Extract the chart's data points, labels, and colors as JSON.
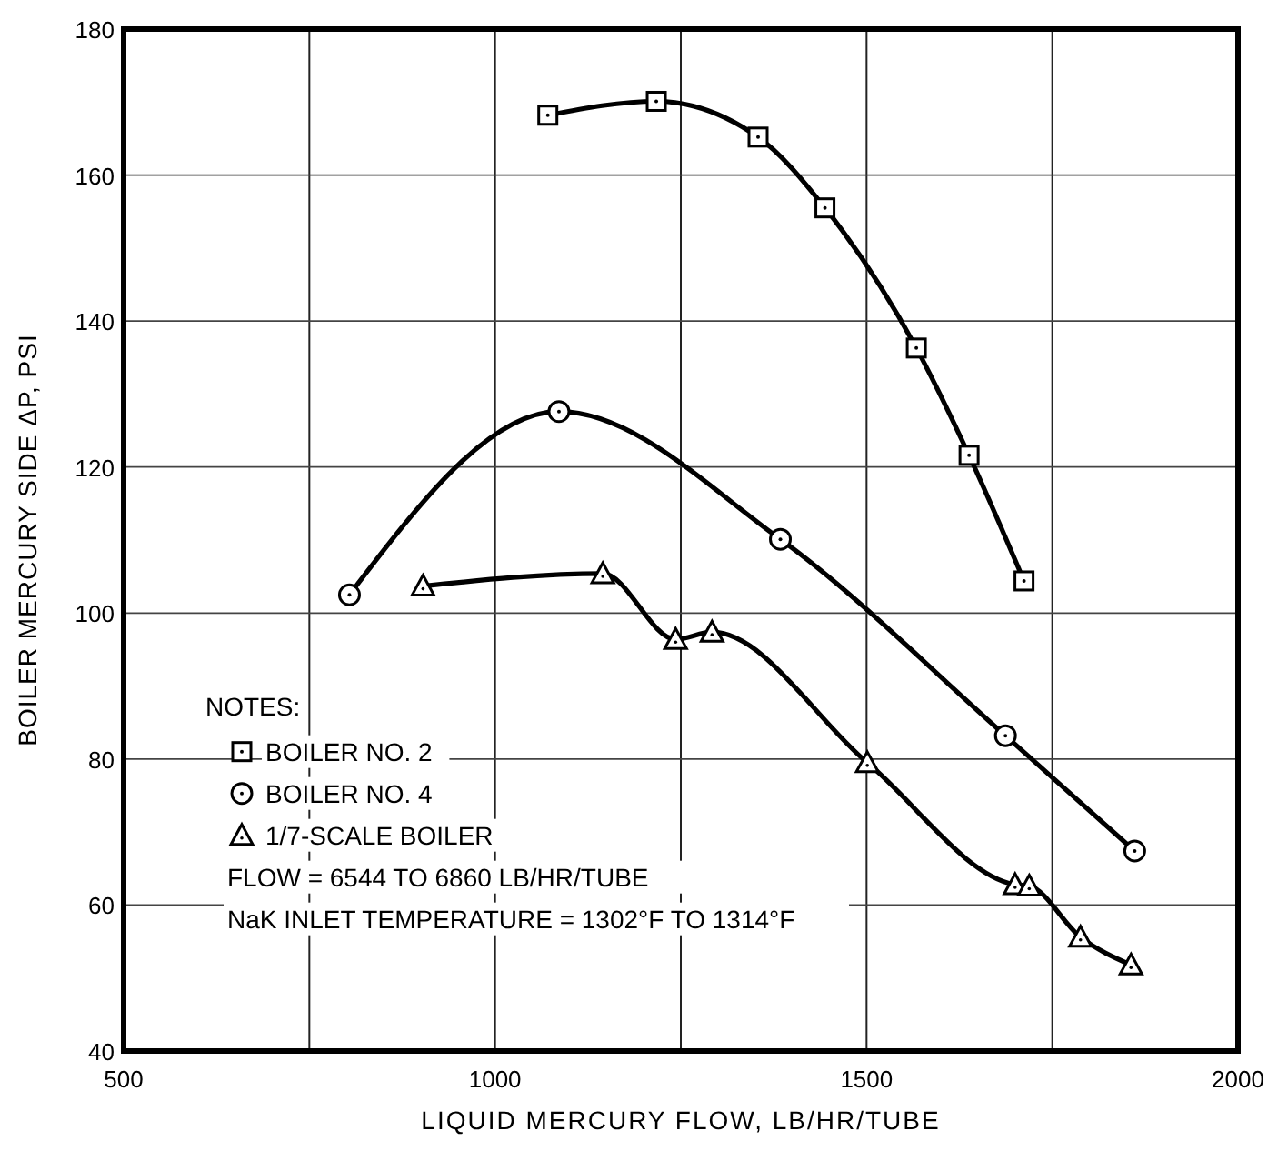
{
  "chart_data": {
    "type": "line",
    "xlabel": "LIQUID MERCURY FLOW, LB/HR/TUBE",
    "ylabel": "BOILER MERCURY SIDE ΔP,  PSI",
    "xlim": [
      500,
      2000
    ],
    "xticks": [
      500,
      {
        "value": 750,
        "label": null
      },
      1000,
      {
        "value": 1250,
        "label": null
      },
      1500,
      {
        "value": 1750,
        "label": null
      },
      2000
    ],
    "ylim": [
      40,
      180
    ],
    "yticks": [
      40,
      60,
      80,
      100,
      120,
      140,
      160,
      180
    ],
    "grid": true,
    "legend": "left",
    "line_style": "solid",
    "series": [
      {
        "name": "BOILER NO. 2",
        "color": "#000000",
        "marker": "square",
        "x": [
          1071,
          1217,
          1354,
          1444,
          1567,
          1638,
          1712
        ],
        "values": [
          168.2,
          170.1,
          165.2,
          155.5,
          136.3,
          121.6,
          104.4
        ]
      },
      {
        "name": "BOILER NO. 4",
        "color": "#000000",
        "marker": "circle",
        "x": [
          804,
          1086,
          1384,
          1687,
          1861
        ],
        "values": [
          102.5,
          127.6,
          110.1,
          83.2,
          67.4
        ]
      },
      {
        "name": "1/7-SCALE BOILER",
        "color": "#000000",
        "marker": "triangle",
        "x": [
          903,
          1145,
          1243,
          1292,
          1501,
          1700,
          1719,
          1788,
          1856
        ],
        "values": [
          103.7,
          105.4,
          96.4,
          97.4,
          79.5,
          62.8,
          62.6,
          55.6,
          51.8
        ]
      }
    ],
    "annotations": [
      "NOTES:",
      "FLOW = 6544 TO 6860 LB/HR/TUBE",
      "NaK INLET TEMPERATURE = 1302°F TO 1314°F"
    ]
  }
}
